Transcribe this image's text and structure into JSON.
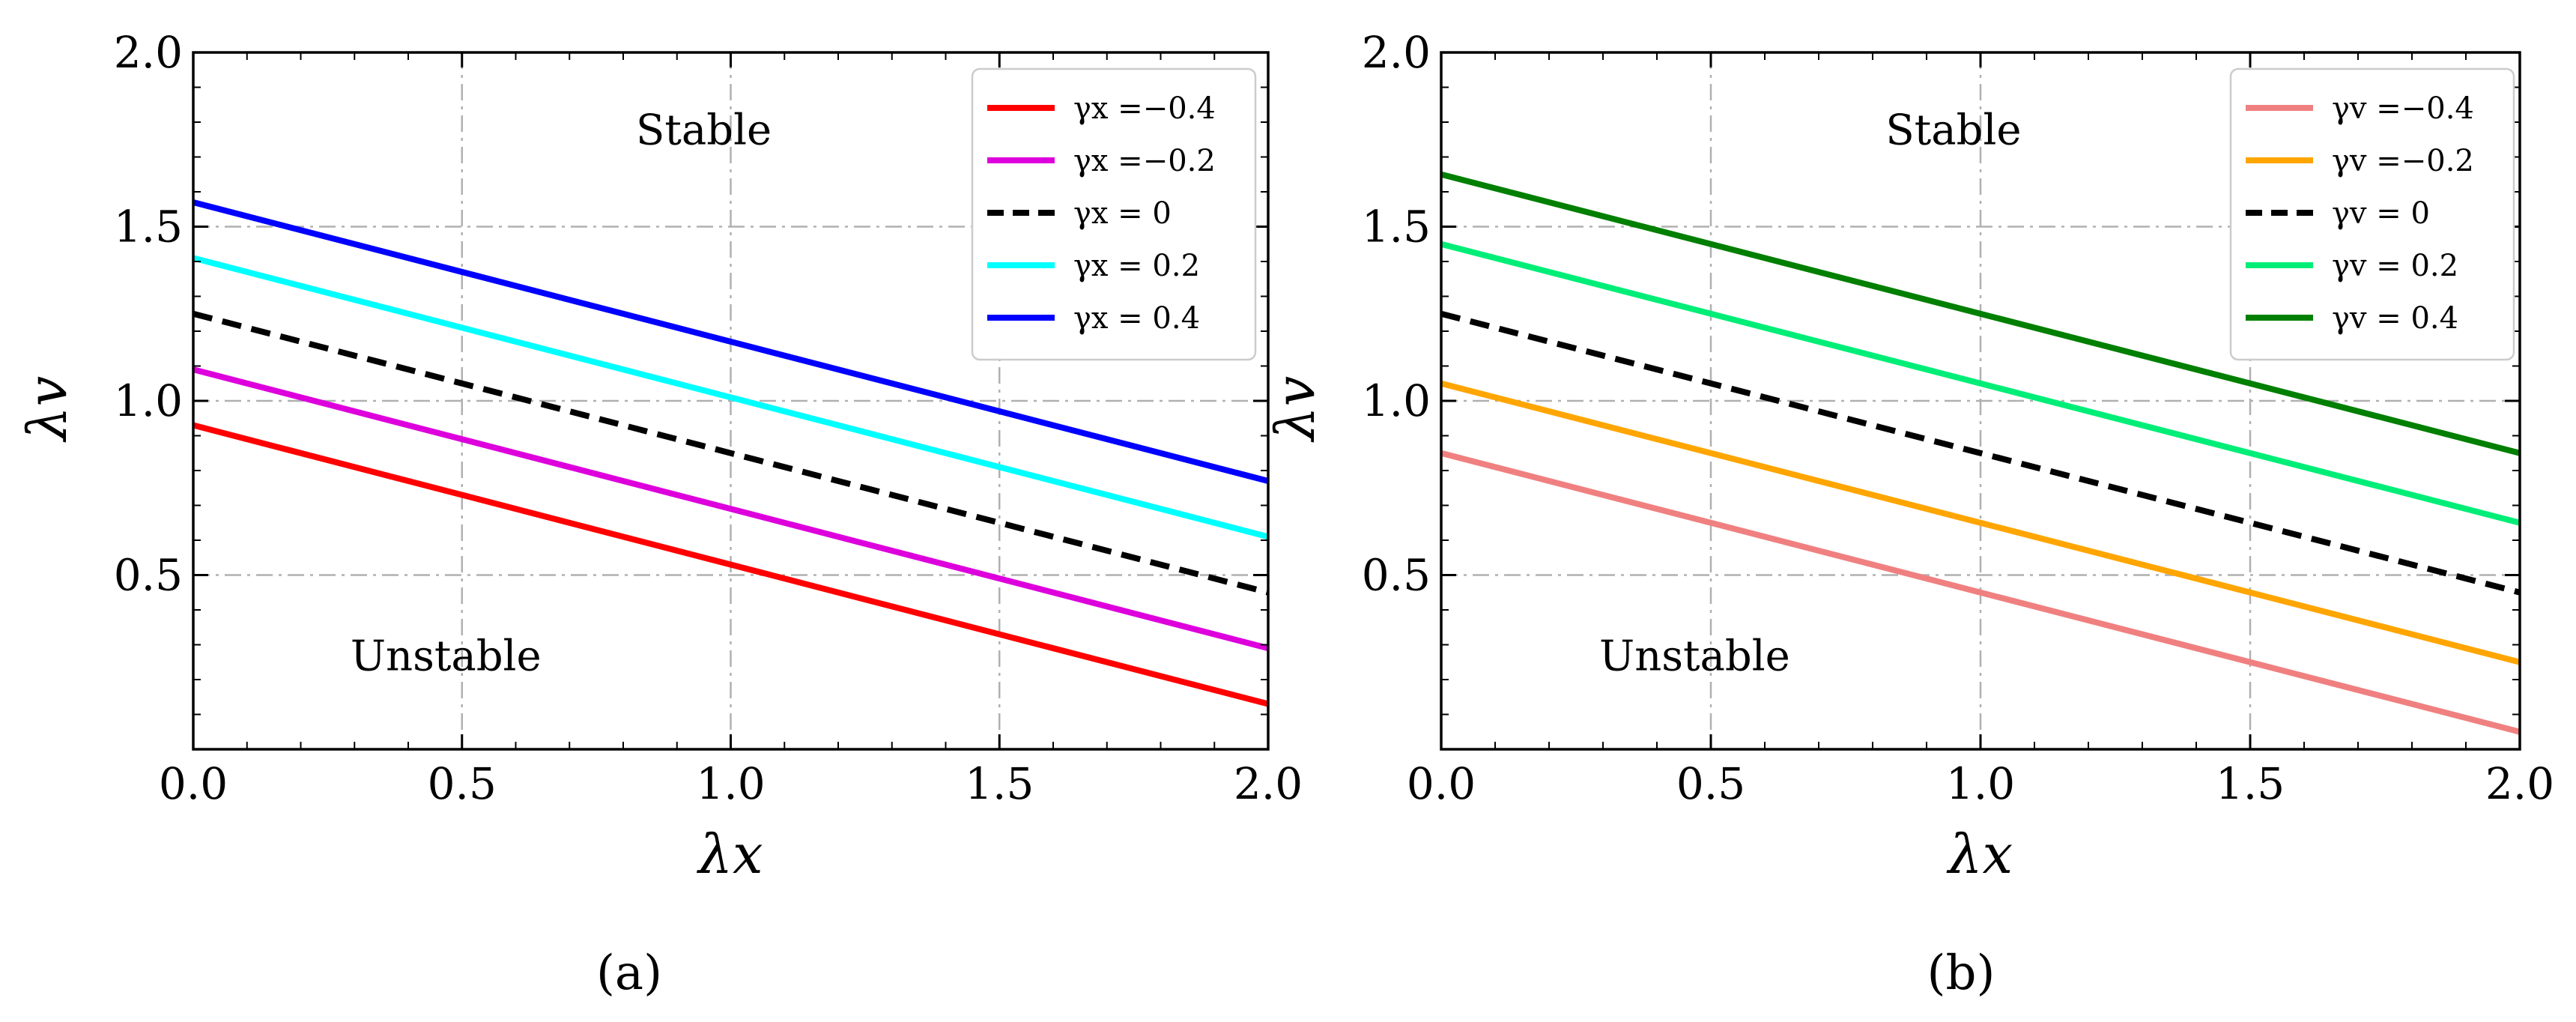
{
  "figure": {
    "captions": [
      "(a)",
      "(b)"
    ]
  },
  "chart_data": [
    {
      "type": "line",
      "panel": "a",
      "xlabel": "λx",
      "ylabel": "λv",
      "xlim": [
        0,
        2
      ],
      "ylim": [
        0,
        2
      ],
      "xticks": [
        "0.0",
        "0.5",
        "1.0",
        "1.5",
        "2.0"
      ],
      "yticks": [
        "0.5",
        "1.0",
        "1.5",
        "2.0"
      ],
      "grid": true,
      "legend_position": "top-right",
      "annotations": [
        {
          "text": "Stable",
          "x": 0.95,
          "y": 1.78
        },
        {
          "text": "Unstable",
          "x": 0.47,
          "y": 0.27
        }
      ],
      "series": [
        {
          "name": "γx =−0.4",
          "color": "#ff0000",
          "dash": false,
          "x": [
            0,
            2
          ],
          "y": [
            0.93,
            0.13
          ]
        },
        {
          "name": "γx =−0.2",
          "color": "#dd00dd",
          "dash": false,
          "x": [
            0,
            2
          ],
          "y": [
            1.09,
            0.29
          ]
        },
        {
          "name": "γx = 0",
          "color": "#000000",
          "dash": true,
          "x": [
            0,
            2
          ],
          "y": [
            1.25,
            0.45
          ]
        },
        {
          "name": "γx = 0.2",
          "color": "#00ffff",
          "dash": false,
          "x": [
            0,
            2
          ],
          "y": [
            1.41,
            0.61
          ]
        },
        {
          "name": "γx = 0.4",
          "color": "#0000ff",
          "dash": false,
          "x": [
            0,
            2
          ],
          "y": [
            1.57,
            0.77
          ]
        }
      ]
    },
    {
      "type": "line",
      "panel": "b",
      "xlabel": "λx",
      "ylabel": "λv",
      "xlim": [
        0,
        2
      ],
      "ylim": [
        0,
        2
      ],
      "xticks": [
        "0.0",
        "0.5",
        "1.0",
        "1.5",
        "2.0"
      ],
      "yticks": [
        "0.5",
        "1.0",
        "1.5",
        "2.0"
      ],
      "grid": true,
      "legend_position": "top-right",
      "annotations": [
        {
          "text": "Stable",
          "x": 0.95,
          "y": 1.78
        },
        {
          "text": "Unstable",
          "x": 0.47,
          "y": 0.27
        }
      ],
      "series": [
        {
          "name": "γv =−0.4",
          "color": "#f08080",
          "dash": false,
          "x": [
            0,
            2
          ],
          "y": [
            0.85,
            0.05
          ]
        },
        {
          "name": "γv =−0.2",
          "color": "#ffa500",
          "dash": false,
          "x": [
            0,
            2
          ],
          "y": [
            1.05,
            0.25
          ]
        },
        {
          "name": "γv = 0",
          "color": "#000000",
          "dash": true,
          "x": [
            0,
            2
          ],
          "y": [
            1.25,
            0.45
          ]
        },
        {
          "name": "γv = 0.2",
          "color": "#00ee77",
          "dash": false,
          "x": [
            0,
            2
          ],
          "y": [
            1.45,
            0.65
          ]
        },
        {
          "name": "γv = 0.4",
          "color": "#007f00",
          "dash": false,
          "x": [
            0,
            2
          ],
          "y": [
            1.65,
            0.85
          ]
        }
      ]
    }
  ]
}
